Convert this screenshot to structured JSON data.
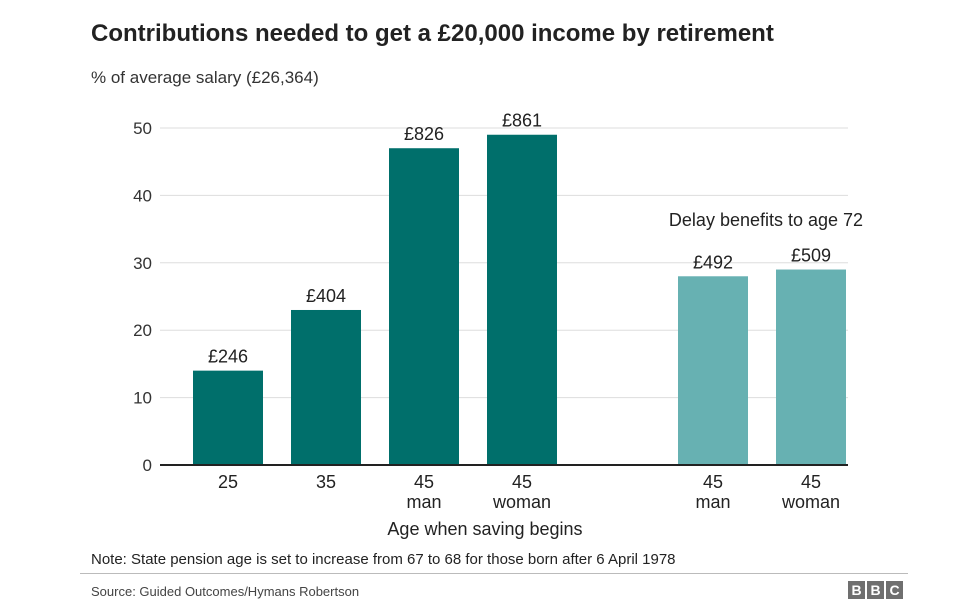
{
  "chart_data": {
    "type": "bar",
    "title": "Contributions needed to get a £20,000 income by retirement",
    "subtitle": "% of average salary (£26,364)",
    "xlabel": "Age when saving begins",
    "ylim": [
      0,
      50
    ],
    "yticks": [
      0,
      10,
      20,
      30,
      40,
      50
    ],
    "grid": true,
    "colors": {
      "primary": "#006f6b",
      "secondary": "#67b1b2"
    },
    "bars": [
      {
        "category": [
          "25"
        ],
        "value": 14,
        "label": "£246",
        "group": "primary"
      },
      {
        "category": [
          "35"
        ],
        "value": 23,
        "label": "£404",
        "group": "primary"
      },
      {
        "category": [
          "45",
          "man"
        ],
        "value": 47,
        "label": "£826",
        "group": "primary"
      },
      {
        "category": [
          "45",
          "woman"
        ],
        "value": 49,
        "label": "£861",
        "group": "primary"
      },
      {
        "category": [
          "45",
          "man"
        ],
        "value": 28,
        "label": "£492",
        "group": "secondary"
      },
      {
        "category": [
          "45",
          "woman"
        ],
        "value": 29,
        "label": "£509",
        "group": "secondary"
      }
    ],
    "annotations": [
      {
        "text": "Delay benefits to age 72",
        "group": "secondary"
      }
    ]
  },
  "note": "Note: State pension age is set to increase from 67 to 68 for those born after 6 April 1978",
  "source": "Source:  Guided Outcomes/Hymans Robertson",
  "logo": [
    "B",
    "B",
    "C"
  ]
}
